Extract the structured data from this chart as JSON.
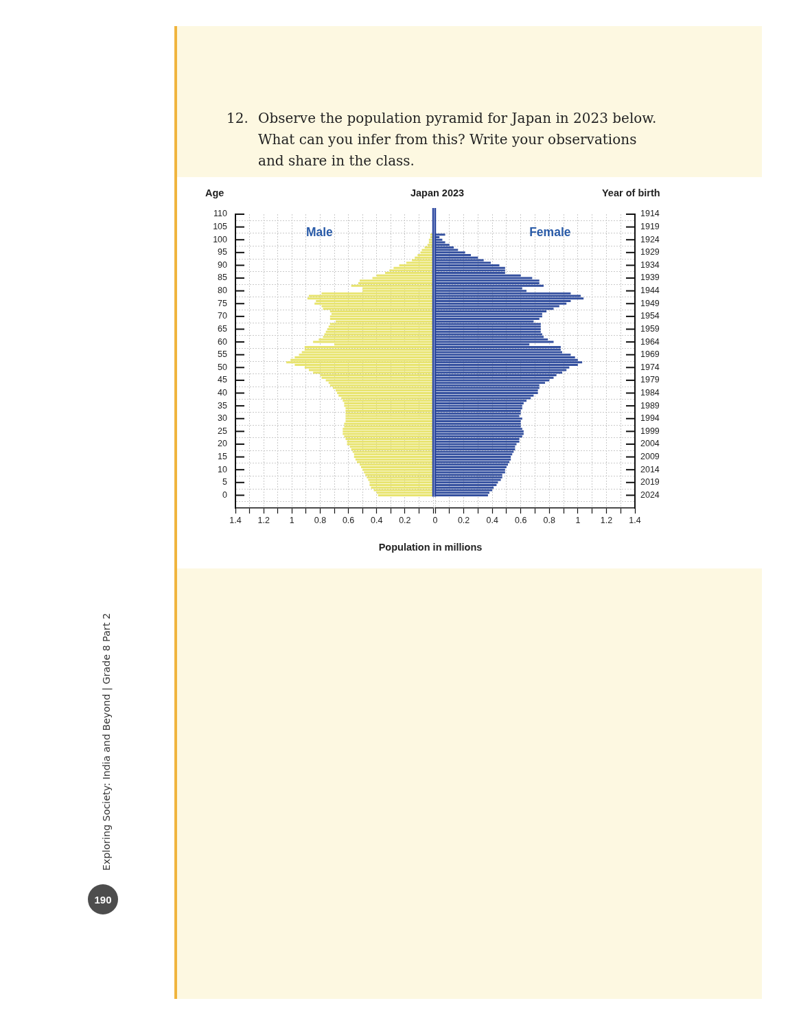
{
  "chart_data": [
    {
      "type": "bar",
      "orientation": "horizontal",
      "title": "Japan 2023",
      "xlabel": "Population in millions",
      "ylabel": "Age",
      "annotations": [
        "12.",
        "Observe the population pyramid for Japan in 2023 below. What can you infer from this? Write your observations and share in the class.",
        "Exploring Society: India and Beyond | Grade 8 Part 2",
        "190"
      ],
      "x": [
        0,
        1,
        2,
        3,
        4,
        5,
        6,
        7,
        8,
        9,
        10,
        11,
        12,
        13,
        14,
        15,
        16,
        17,
        18,
        19,
        20,
        21,
        22,
        23,
        24,
        25,
        26,
        27,
        28,
        29,
        30,
        31,
        32,
        33,
        34,
        35,
        36,
        37,
        38,
        39,
        40,
        41,
        42,
        43,
        44,
        45,
        46,
        47,
        48,
        49,
        50,
        51,
        52,
        53,
        54,
        55,
        56,
        57,
        58,
        59,
        60,
        61,
        62,
        63,
        64,
        65,
        66,
        67,
        68,
        69,
        70,
        71,
        72,
        73,
        74,
        75,
        76,
        77,
        78,
        79,
        80,
        81,
        82,
        83,
        84,
        85,
        86,
        87,
        88,
        89,
        90,
        91,
        92,
        93,
        94,
        95,
        96,
        97,
        98,
        99,
        100,
        101,
        102
      ],
      "series": [
        {
          "name": "Male",
          "color": "#e8e46e",
          "values": [
            0.39,
            0.4,
            0.42,
            0.44,
            0.45,
            0.45,
            0.46,
            0.47,
            0.48,
            0.49,
            0.5,
            0.51,
            0.52,
            0.54,
            0.55,
            0.56,
            0.56,
            0.57,
            0.58,
            0.59,
            0.61,
            0.61,
            0.62,
            0.63,
            0.64,
            0.64,
            0.64,
            0.63,
            0.63,
            0.62,
            0.62,
            0.62,
            0.62,
            0.62,
            0.62,
            0.63,
            0.63,
            0.64,
            0.65,
            0.67,
            0.68,
            0.69,
            0.71,
            0.73,
            0.74,
            0.76,
            0.79,
            0.8,
            0.85,
            0.88,
            0.91,
            0.98,
            1.04,
            1.01,
            0.98,
            0.95,
            0.93,
            0.91,
            0.91,
            0.7,
            0.85,
            0.81,
            0.78,
            0.77,
            0.76,
            0.75,
            0.74,
            0.73,
            0.69,
            0.73,
            0.73,
            0.72,
            0.73,
            0.78,
            0.79,
            0.84,
            0.83,
            0.89,
            0.88,
            0.79,
            0.5,
            0.5,
            0.58,
            0.53,
            0.52,
            0.43,
            0.4,
            0.34,
            0.31,
            0.28,
            0.24,
            0.19,
            0.15,
            0.13,
            0.11,
            0.09,
            0.08,
            0.06,
            0.04,
            0.03,
            0.03,
            0.02,
            0.02
          ]
        }
      ],
      "xlim": [
        1.4,
        0
      ],
      "xticks": [
        1.4,
        {
          "value": 1.3,
          "label": null
        },
        1.2,
        {
          "value": 1.1,
          "label": null
        },
        1,
        {
          "value": 0.9,
          "label": null
        },
        0.8,
        {
          "value": 0.7,
          "label": null
        },
        0.6,
        {
          "value": 0.5,
          "label": null
        },
        0.4,
        {
          "value": 0.3,
          "label": null
        },
        0.2,
        {
          "value": 0.1,
          "label": null
        },
        {
          "value": 0,
          "label": null
        }
      ],
      "ylim": [
        -5,
        110
      ],
      "yticks": [
        0,
        5,
        10,
        15,
        20,
        25,
        30,
        35,
        40,
        45,
        50,
        55,
        60,
        65,
        70,
        75,
        80,
        85,
        90,
        95,
        100,
        105,
        110
      ],
      "grid": true,
      "legend": false
    },
    {
      "type": "bar",
      "orientation": "horizontal",
      "ylabel": "Year of birth",
      "x": [
        2024,
        2023,
        2022,
        2021,
        2020,
        2019,
        2018,
        2017,
        2016,
        2015,
        2014,
        2013,
        2012,
        2011,
        2010,
        2009,
        2008,
        2007,
        2006,
        2005,
        2004,
        2003,
        2002,
        2001,
        2000,
        1999,
        1998,
        1997,
        1996,
        1995,
        1994,
        1993,
        1992,
        1991,
        1990,
        1989,
        1988,
        1987,
        1986,
        1985,
        1984,
        1983,
        1982,
        1981,
        1980,
        1979,
        1978,
        1977,
        1976,
        1975,
        1974,
        1973,
        1972,
        1971,
        1970,
        1969,
        1968,
        1967,
        1966,
        1965,
        1964,
        1963,
        1962,
        1961,
        1960,
        1959,
        1958,
        1957,
        1956,
        1955,
        1954,
        1953,
        1952,
        1951,
        1950,
        1949,
        1948,
        1947,
        1946,
        1945,
        1944,
        1943,
        1942,
        1941,
        1940,
        1939,
        1938,
        1937,
        1936,
        1935,
        1934,
        1933,
        1932,
        1931,
        1930,
        1929,
        1928,
        1927,
        1926,
        1925,
        1924,
        1923,
        1922
      ],
      "series": [
        {
          "name": "Female",
          "color": "#34509f",
          "values": [
            0.37,
            0.38,
            0.4,
            0.41,
            0.43,
            0.44,
            0.46,
            0.47,
            0.47,
            0.49,
            0.49,
            0.5,
            0.51,
            0.52,
            0.53,
            0.53,
            0.54,
            0.55,
            0.56,
            0.56,
            0.57,
            0.59,
            0.59,
            0.61,
            0.62,
            0.62,
            0.61,
            0.6,
            0.6,
            0.6,
            0.61,
            0.59,
            0.6,
            0.6,
            0.61,
            0.61,
            0.62,
            0.64,
            0.67,
            0.69,
            0.72,
            0.72,
            0.73,
            0.73,
            0.77,
            0.8,
            0.83,
            0.85,
            0.89,
            0.92,
            0.94,
            1.0,
            1.03,
            1.0,
            0.98,
            0.95,
            0.89,
            0.88,
            0.88,
            0.66,
            0.83,
            0.79,
            0.76,
            0.75,
            0.74,
            0.74,
            0.74,
            0.74,
            0.69,
            0.73,
            0.75,
            0.75,
            0.78,
            0.83,
            0.87,
            0.92,
            0.95,
            1.04,
            1.02,
            0.95,
            0.64,
            0.61,
            0.76,
            0.73,
            0.73,
            0.68,
            0.6,
            0.49,
            0.49,
            0.49,
            0.45,
            0.39,
            0.34,
            0.3,
            0.25,
            0.21,
            0.16,
            0.13,
            0.1,
            0.07,
            0.05,
            0.03,
            0.07
          ]
        }
      ],
      "xlim": [
        0,
        1.4
      ],
      "xticks": [
        0,
        {
          "value": 0.1,
          "label": null
        },
        0.2,
        {
          "value": 0.3,
          "label": null
        },
        0.4,
        {
          "value": 0.5,
          "label": null
        },
        0.6,
        {
          "value": 0.7,
          "label": null
        },
        0.8,
        {
          "value": 0.9,
          "label": null
        },
        1,
        {
          "value": 1.1,
          "label": null
        },
        1.2,
        {
          "value": 1.3,
          "label": null
        },
        1.4
      ],
      "ylim": [
        2029,
        1914
      ],
      "yticks": [
        1914,
        1919,
        1924,
        1929,
        1934,
        1939,
        1944,
        1949,
        1954,
        1959,
        1964,
        1969,
        1974,
        1979,
        1984,
        1989,
        1994,
        1999,
        2004,
        2009,
        2014,
        2019,
        2024
      ],
      "grid": true,
      "legend": false
    }
  ]
}
